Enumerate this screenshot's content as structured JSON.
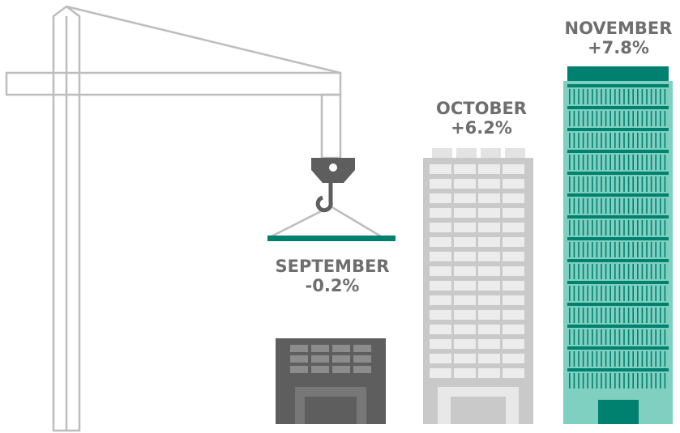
{
  "items": [
    {
      "month": "SEPTEMBER",
      "change": "-0.2%"
    },
    {
      "month": "OCTOBER",
      "change": "+6.2%"
    },
    {
      "month": "NOVEMBER",
      "change": "+7.8%"
    }
  ]
}
